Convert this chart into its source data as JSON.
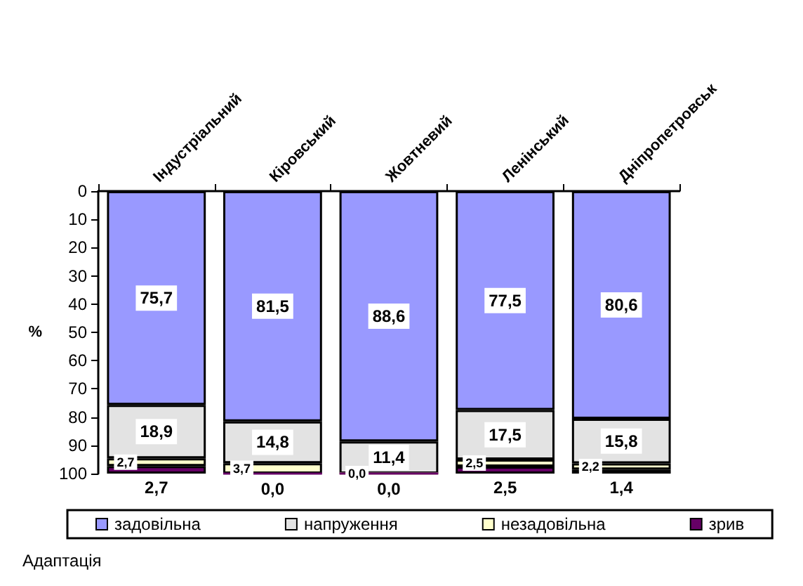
{
  "chart_data": {
    "type": "bar",
    "stacked": true,
    "ylabel": "%",
    "categories": [
      "Індустріальний",
      "Кіровський",
      "Жовтневий",
      "Ленінський",
      "Дніпропетровськ"
    ],
    "series": [
      {
        "name": "задовільна",
        "color": "#9999ff",
        "values": [
          75.7,
          81.5,
          88.6,
          77.5,
          80.6
        ],
        "value_labels": [
          "75,7",
          "81,5",
          "88,6",
          "77,5",
          "80,6"
        ]
      },
      {
        "name": "напруження",
        "color": "#e3e3e3",
        "values": [
          18.9,
          14.8,
          11.4,
          17.5,
          15.8
        ],
        "value_labels": [
          "18,9",
          "14,8",
          "11,4",
          "17,5",
          "15,8"
        ]
      },
      {
        "name": "незадовільна",
        "color": "#ffffcc",
        "values": [
          2.7,
          3.7,
          0.0,
          2.5,
          2.2
        ],
        "value_labels": [
          "2,7",
          "3,7",
          "0,0",
          "2,5",
          "2,2"
        ]
      },
      {
        "name": "зрив",
        "color": "#660066",
        "values": [
          2.7,
          0.0,
          0.0,
          2.5,
          1.4
        ],
        "value_labels": [
          "2,7",
          "0,0",
          "0,0",
          "2,5",
          "1,4"
        ]
      }
    ],
    "ylim": [
      100,
      0
    ],
    "yticks": [
      0,
      10,
      20,
      30,
      40,
      50,
      60,
      70,
      80,
      90,
      100
    ],
    "grid": false,
    "legend": "bottom",
    "annotations": [
      "Адаптація"
    ]
  }
}
